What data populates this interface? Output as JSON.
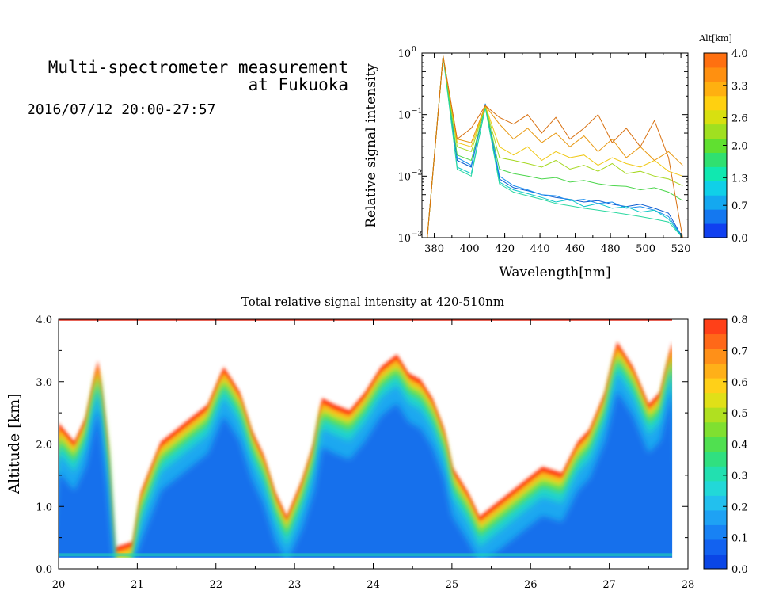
{
  "header": {
    "title_line1": "Multi-spectrometer measurement",
    "title_line2": "at Fukuoka",
    "subtitle": "2016/07/12 20:00-27:57"
  },
  "chart_data": [
    {
      "type": "line",
      "xlabel": "Wavelength[nm]",
      "ylabel": "Relative signal intensity",
      "xlim": [
        373,
        524
      ],
      "ylim": [
        0.001,
        1
      ],
      "yscale": "log",
      "x_ticks": [
        "380",
        "400",
        "420",
        "440",
        "460",
        "480",
        "500",
        "520"
      ],
      "y_ticks": [
        {
          "base": "10",
          "exp": "0"
        },
        {
          "base": "10",
          "exp": "−1"
        },
        {
          "base": "10",
          "exp": "−2"
        },
        {
          "base": "10",
          "exp": "−3"
        }
      ],
      "x": [
        376,
        385,
        393,
        401,
        409,
        417,
        425,
        433,
        441,
        449,
        457,
        465,
        473,
        481,
        489,
        497,
        505,
        513,
        521
      ],
      "series": [
        {
          "color": "#0a5ad0",
          "values": [
            0.001,
            0.9,
            0.018,
            0.014,
            0.15,
            0.009,
            0.0065,
            0.0058,
            0.005,
            0.0045,
            0.0042,
            0.0038,
            0.004,
            0.0035,
            0.0032,
            0.0035,
            0.003,
            0.0025,
            0.001
          ]
        },
        {
          "color": "#1a8ef0",
          "values": [
            0.001,
            0.9,
            0.02,
            0.015,
            0.15,
            0.01,
            0.007,
            0.006,
            0.005,
            0.0048,
            0.004,
            0.0042,
            0.0036,
            0.0038,
            0.003,
            0.0032,
            0.0028,
            0.0022,
            0.001
          ]
        },
        {
          "color": "#0fc8c8",
          "values": [
            0.001,
            0.9,
            0.014,
            0.011,
            0.13,
            0.008,
            0.006,
            0.0052,
            0.0045,
            0.0038,
            0.0042,
            0.0032,
            0.0036,
            0.003,
            0.0032,
            0.0026,
            0.0028,
            0.002,
            0.001
          ]
        },
        {
          "color": "#2ad8a0",
          "values": [
            0.001,
            0.9,
            0.013,
            0.01,
            0.13,
            0.0075,
            0.0055,
            0.0048,
            0.0042,
            0.0036,
            0.0033,
            0.003,
            0.0028,
            0.0026,
            0.0024,
            0.0022,
            0.002,
            0.0018,
            0.001
          ]
        },
        {
          "color": "#4cd64c",
          "values": [
            0.001,
            0.9,
            0.022,
            0.018,
            0.14,
            0.013,
            0.011,
            0.01,
            0.009,
            0.0095,
            0.008,
            0.0085,
            0.0075,
            0.007,
            0.0068,
            0.006,
            0.0065,
            0.0055,
            0.004
          ]
        },
        {
          "color": "#a6d820",
          "values": [
            0.001,
            0.9,
            0.03,
            0.025,
            0.14,
            0.02,
            0.018,
            0.016,
            0.014,
            0.018,
            0.013,
            0.015,
            0.012,
            0.016,
            0.011,
            0.012,
            0.01,
            0.009,
            0.007
          ]
        },
        {
          "color": "#f0c814",
          "values": [
            0.001,
            0.9,
            0.035,
            0.03,
            0.14,
            0.03,
            0.022,
            0.03,
            0.018,
            0.025,
            0.02,
            0.022,
            0.015,
            0.02,
            0.016,
            0.014,
            0.018,
            0.012,
            0.01
          ]
        },
        {
          "color": "#e89810",
          "values": [
            0.001,
            0.9,
            0.04,
            0.035,
            0.14,
            0.07,
            0.04,
            0.06,
            0.035,
            0.05,
            0.03,
            0.045,
            0.025,
            0.04,
            0.02,
            0.03,
            0.018,
            0.025,
            0.015
          ]
        },
        {
          "color": "#d87010",
          "values": [
            0.001,
            0.9,
            0.04,
            0.06,
            0.14,
            0.09,
            0.07,
            0.1,
            0.05,
            0.09,
            0.04,
            0.06,
            0.1,
            0.035,
            0.06,
            0.03,
            0.08,
            0.02,
            0.001
          ]
        }
      ],
      "colorbar": {
        "label": "Alt[km]",
        "range": [
          0.0,
          4.0
        ],
        "ticks": [
          "4.0",
          "3.3",
          "2.6",
          "2.0",
          "1.3",
          "0.7",
          "0.0"
        ],
        "colors": [
          "#1040f0",
          "#1478f0",
          "#14a8f0",
          "#10d0e8",
          "#10e8b0",
          "#30e070",
          "#60e030",
          "#a0e020",
          "#d8e010",
          "#ffd010",
          "#ffb010",
          "#ff9010",
          "#ff7010"
        ]
      }
    },
    {
      "type": "heatmap",
      "title": "Total relative signal intensity at 420-510nm",
      "xlabel": "",
      "ylabel": "Altitude [km]",
      "xlim": [
        20,
        28
      ],
      "ylim": [
        0.0,
        4.0
      ],
      "x_ticks": [
        "20",
        "21",
        "22",
        "23",
        "24",
        "25",
        "26",
        "27",
        "28"
      ],
      "y_ticks": [
        "0.0",
        "1.0",
        "2.0",
        "3.0",
        "4.0"
      ],
      "cloud_base_km": [
        [
          20.0,
          2.3
        ],
        [
          20.2,
          2.0
        ],
        [
          20.35,
          2.4
        ],
        [
          20.5,
          3.3
        ],
        [
          20.62,
          2.0
        ],
        [
          20.7,
          0.3
        ],
        [
          20.95,
          0.4
        ],
        [
          21.05,
          1.2
        ],
        [
          21.3,
          2.0
        ],
        [
          21.6,
          2.3
        ],
        [
          21.9,
          2.6
        ],
        [
          22.1,
          3.2
        ],
        [
          22.3,
          2.8
        ],
        [
          22.45,
          2.2
        ],
        [
          22.6,
          1.8
        ],
        [
          22.75,
          1.2
        ],
        [
          22.9,
          0.8
        ],
        [
          23.1,
          1.4
        ],
        [
          23.25,
          2.0
        ],
        [
          23.35,
          2.7
        ],
        [
          23.5,
          2.6
        ],
        [
          23.7,
          2.5
        ],
        [
          23.9,
          2.8
        ],
        [
          24.1,
          3.2
        ],
        [
          24.3,
          3.4
        ],
        [
          24.45,
          3.1
        ],
        [
          24.6,
          3.0
        ],
        [
          24.75,
          2.7
        ],
        [
          24.9,
          2.2
        ],
        [
          25.0,
          1.6
        ],
        [
          25.2,
          1.2
        ],
        [
          25.35,
          0.8
        ],
        [
          25.55,
          1.0
        ],
        [
          25.75,
          1.2
        ],
        [
          25.95,
          1.4
        ],
        [
          26.15,
          1.6
        ],
        [
          26.4,
          1.5
        ],
        [
          26.6,
          2.0
        ],
        [
          26.75,
          2.2
        ],
        [
          26.95,
          2.8
        ],
        [
          27.1,
          3.6
        ],
        [
          27.3,
          3.2
        ],
        [
          27.5,
          2.6
        ],
        [
          27.65,
          2.8
        ],
        [
          27.8,
          3.6
        ]
      ],
      "colorbar": {
        "range": [
          0.0,
          0.8
        ],
        "ticks": [
          "0.8",
          "0.7",
          "0.6",
          "0.5",
          "0.4",
          "0.3",
          "0.2",
          "0.1",
          "0.0"
        ],
        "colors": [
          "#0a46e6",
          "#1262f0",
          "#1882f4",
          "#1ea2f4",
          "#22c0ee",
          "#22d8d8",
          "#22e0b0",
          "#30e080",
          "#50e050",
          "#80e030",
          "#b0e020",
          "#e0e018",
          "#ffd018",
          "#ffb018",
          "#ff9018",
          "#ff6818",
          "#ff4018"
        ]
      }
    }
  ]
}
